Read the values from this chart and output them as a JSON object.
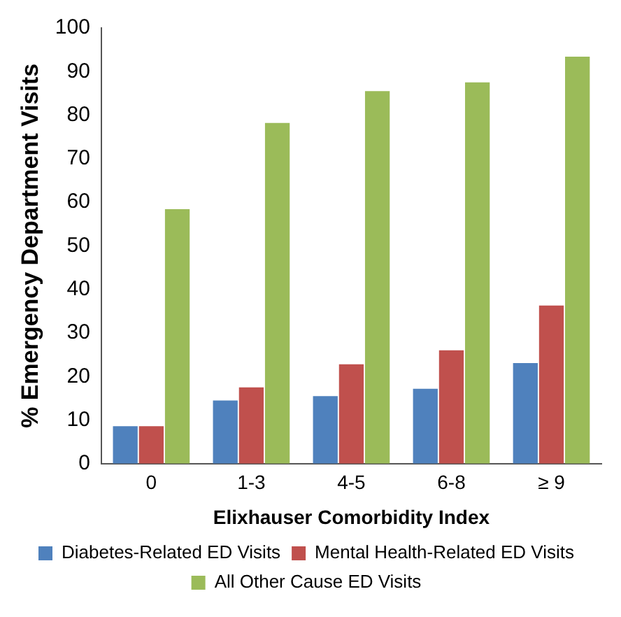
{
  "chart_data": {
    "type": "bar",
    "xlabel": "Elixhauser Comorbidity Index",
    "ylabel": "% Emergency Department Visits",
    "categories": [
      "0",
      "1-3",
      "4-5",
      "6-8",
      "≥ 9"
    ],
    "series": [
      {
        "name": "Diabetes-Related ED Visits",
        "color": "#4f81bd",
        "values": [
          8.6,
          14.5,
          15.5,
          17.2,
          23.1
        ]
      },
      {
        "name": "Mental Health-Related ED Visits",
        "color": "#c0504d",
        "values": [
          8.6,
          17.5,
          22.8,
          26,
          36.3
        ]
      },
      {
        "name": "All Other Cause ED Visits",
        "color": "#9bbb59",
        "values": [
          58.4,
          78.2,
          85.5,
          87.5,
          93.4
        ]
      }
    ],
    "ylim": [
      0,
      100
    ],
    "yticks": [
      0,
      10,
      20,
      30,
      40,
      50,
      60,
      70,
      80,
      90,
      100
    ],
    "grid": false,
    "legend": "bottom"
  }
}
